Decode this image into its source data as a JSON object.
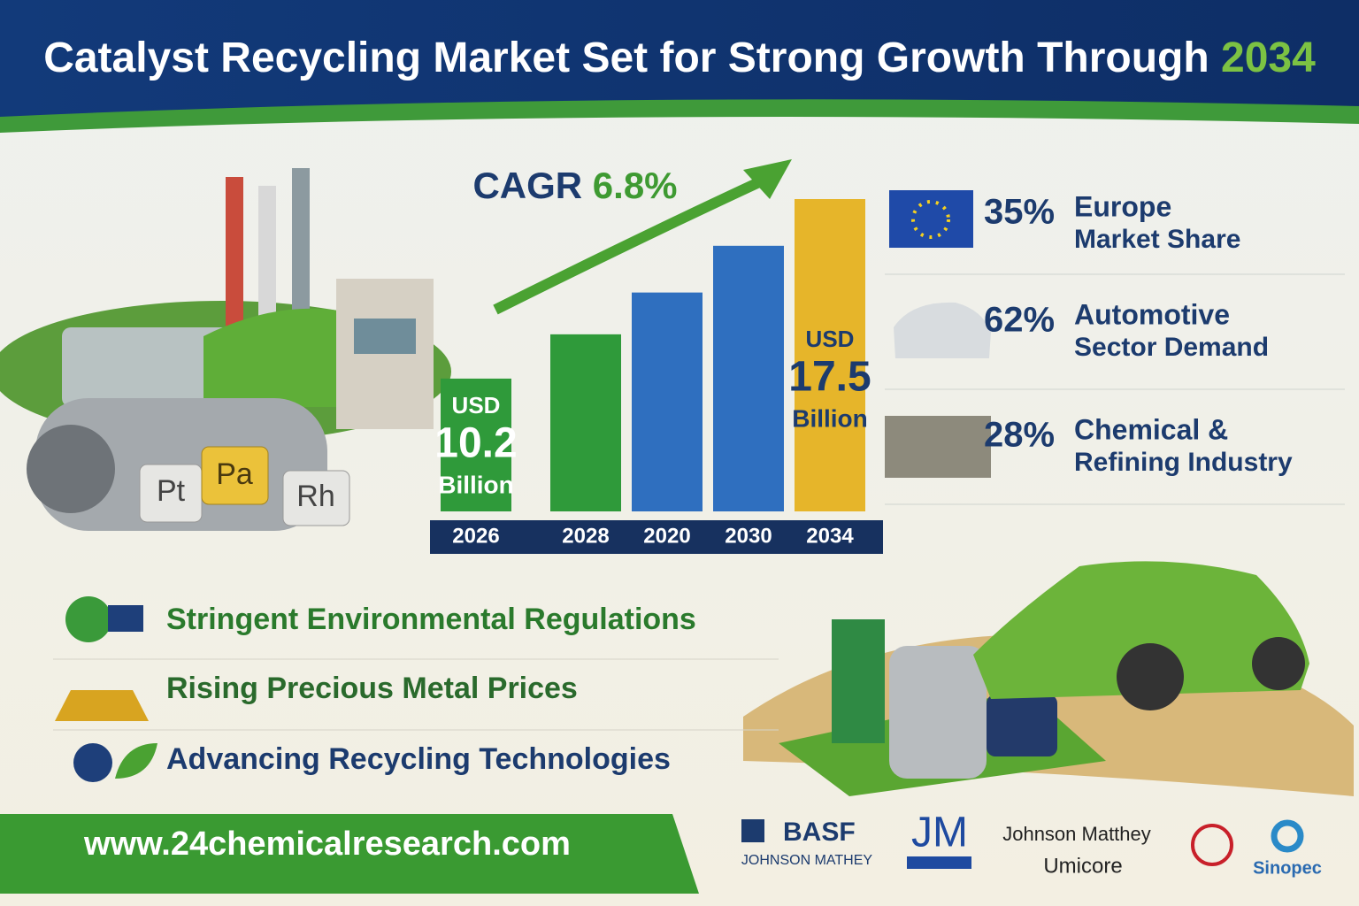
{
  "header": {
    "title": "Catalyst Recycling Market Set for Strong Growth Through",
    "title_year": "2034"
  },
  "chart_data": {
    "type": "bar",
    "cagr_label": "CAGR",
    "cagr_value": "6.8%",
    "categories": [
      "2026",
      "2028",
      "2020",
      "2030",
      "2034"
    ],
    "values": [
      10.2,
      12.0,
      13.7,
      15.6,
      17.5
    ],
    "value_labels": [
      "10.2",
      null,
      null,
      null,
      "17.5"
    ],
    "value_prefix": "USD",
    "value_suffix": "Billion",
    "colors": [
      "#2f9a3a",
      "#2f9a3a",
      "#2f6fbf",
      "#2f6fbf",
      "#e6b52a"
    ],
    "ylim": [
      4.8,
      17.5
    ]
  },
  "stats": [
    {
      "percent": "35%",
      "label": "Europe",
      "sub": "Market Share"
    },
    {
      "percent": "62%",
      "label": "Automotive",
      "sub": "Sector Demand"
    },
    {
      "percent": "28%",
      "label": "Chemical &",
      "sub": "Refining Industry"
    }
  ],
  "metals": [
    "Pt",
    "Pa",
    "Rh"
  ],
  "drivers": [
    "Stringent Environmental Regulations",
    "Rising Precious Metal Prices",
    "Advancing Recycling Technologies"
  ],
  "footer": {
    "url": "www.24chemicalresearch.com"
  },
  "logos": [
    "BASF",
    "JOHNSON MATHEY",
    "JM",
    "Johnson Matthey",
    "Umicore",
    "Sinopec"
  ]
}
